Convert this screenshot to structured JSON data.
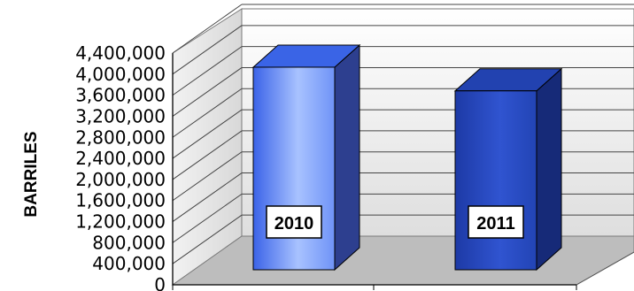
{
  "chart_data": {
    "type": "bar",
    "title": "",
    "xlabel": "",
    "ylabel": "BARRILES",
    "ylim": [
      0,
      4400000
    ],
    "tick_step": 400000,
    "yticks": [
      "0",
      "400,000",
      "800,000",
      "1,200,000",
      "1,600,000",
      "2,000,000",
      "2,400,000",
      "2,800,000",
      "3,200,000",
      "3,600,000",
      "4,000,000",
      "4,400,000"
    ],
    "categories": [
      "2010",
      "2011"
    ],
    "values": [
      4300000,
      3850000
    ],
    "bar_colors": [
      "#4f7df5",
      "#2345b8"
    ],
    "grid": true,
    "legend": "none",
    "three_d": true
  }
}
